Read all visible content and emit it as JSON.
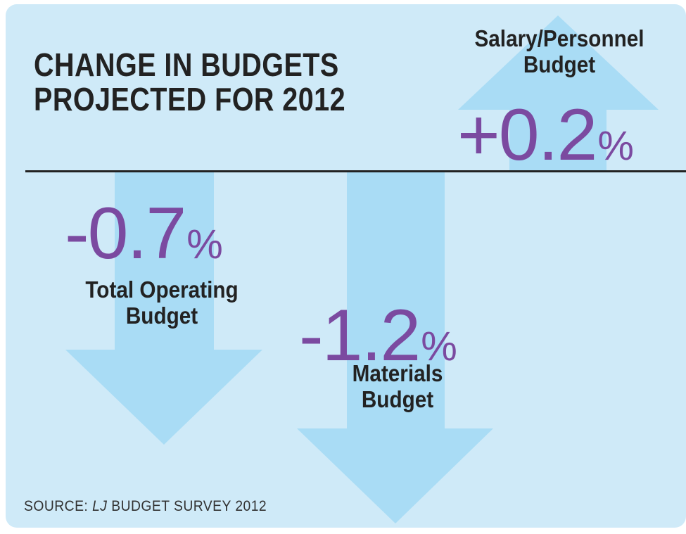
{
  "chart_data": {
    "type": "bar",
    "title": "CHANGE IN BUDGETS PROJECTED FOR 2012",
    "title_lines": [
      "CHANGE IN BUDGETS",
      "PROJECTED FOR 2012"
    ],
    "unit": "%",
    "categories": [
      "Total Operating Budget",
      "Materials Budget",
      "Salary/Personnel Budget"
    ],
    "values": [
      -0.7,
      -1.2,
      0.2
    ],
    "items": [
      {
        "label_lines": [
          "Total Operating",
          "Budget"
        ],
        "value": -0.7,
        "value_text": "-0.7",
        "direction": "down"
      },
      {
        "label_lines": [
          "Materials",
          "Budget"
        ],
        "value": -1.2,
        "value_text": "-1.2",
        "direction": "down"
      },
      {
        "label_lines": [
          "Salary/Personnel",
          "Budget"
        ],
        "value": 0.2,
        "value_text": "+0.2",
        "direction": "up"
      }
    ],
    "source_prefix": "SOURCE: ",
    "source_italic": "LJ",
    "source_suffix": " BUDGET SURVEY 2012",
    "colors": {
      "background": "#cfeaf8",
      "arrow": "#a9dcf5",
      "value_text": "#7b4aa0",
      "text": "#222222"
    }
  }
}
